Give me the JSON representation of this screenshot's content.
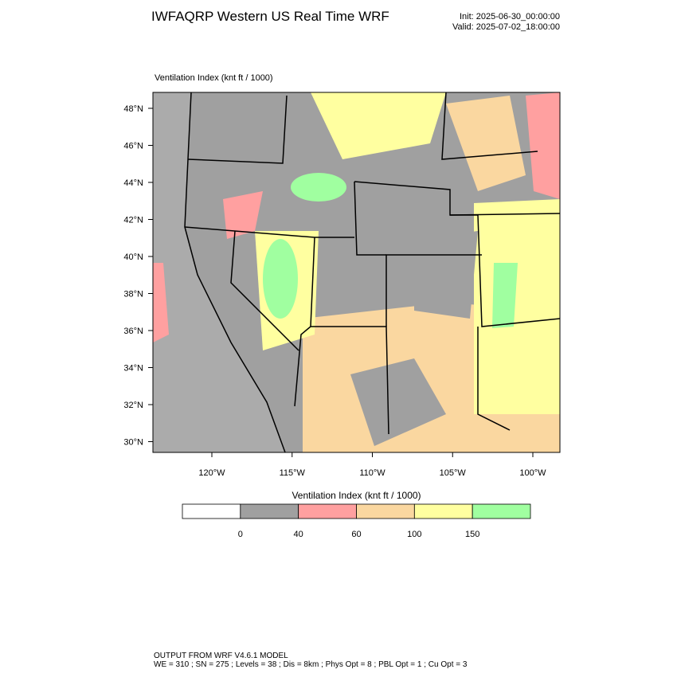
{
  "header": {
    "title": "IWFAQRP Western US Real Time WRF",
    "init": "Init: 2025-06-30_00:00:00",
    "valid": "Valid: 2025-07-02_18:00:00"
  },
  "map": {
    "title": "Ventilation Index   (knt ft / 1000)",
    "lat_labels": [
      "48°N",
      "46°N",
      "44°N",
      "42°N",
      "40°N",
      "38°N",
      "36°N",
      "34°N",
      "32°N",
      "30°N"
    ],
    "lon_labels": [
      "120°W",
      "115°W",
      "110°W",
      "105°W",
      "100°W"
    ]
  },
  "colorbar": {
    "title": "Ventilation Index   (knt ft / 1000)",
    "colors": [
      "#ffffff",
      "#a0a0a0",
      "#ffa0a0",
      "#fad7a0",
      "#ffffa0",
      "#a0ffa0"
    ],
    "labels": [
      0,
      40,
      60,
      100,
      150
    ]
  },
  "footer": {
    "line1": "OUTPUT FROM WRF V4.6.1 MODEL",
    "line2": "WE = 310 ; SN = 275 ; Levels = 38 ; Dis = 8km ; Phys Opt = 8 ; PBL Opt = 1 ; Cu Opt = 3"
  }
}
